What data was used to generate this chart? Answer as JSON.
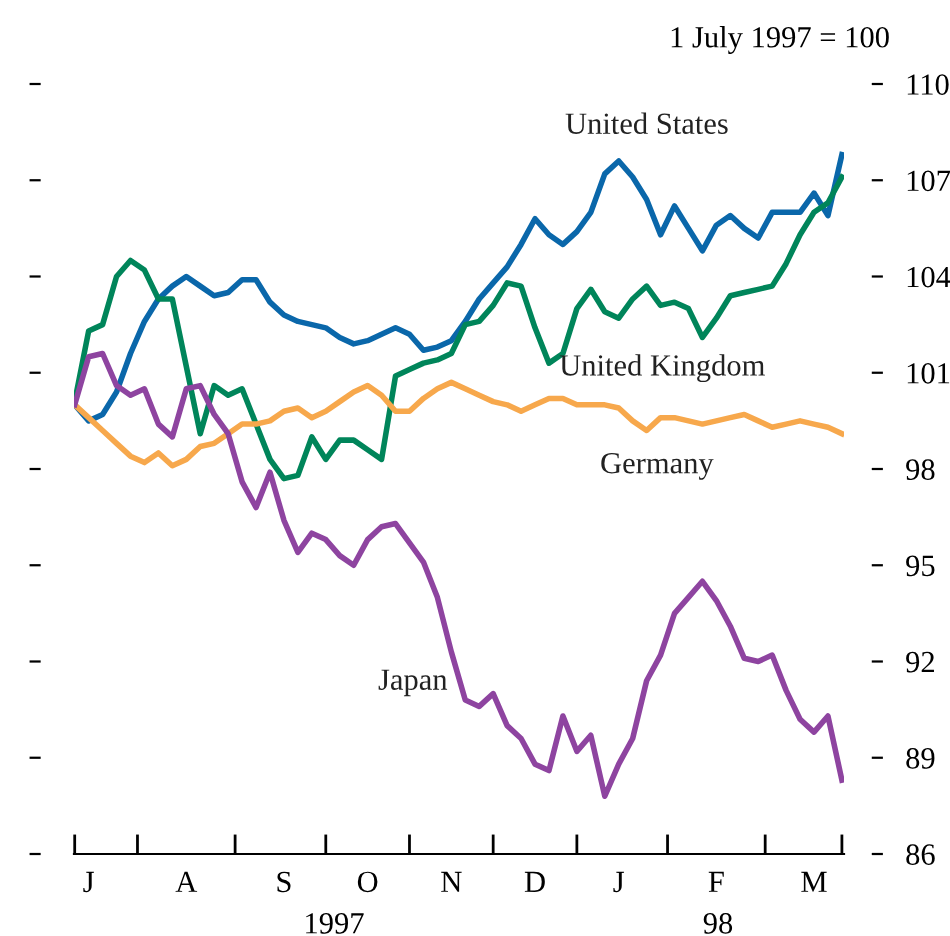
{
  "chart_data": {
    "type": "line",
    "annotations": [
      "1 July 1997 = 100",
      "1997",
      "98"
    ],
    "categories": [
      null,
      "J",
      null,
      null,
      null,
      null,
      null,
      null,
      "A",
      null,
      null,
      null,
      null,
      null,
      null,
      "S",
      null,
      null,
      null,
      null,
      null,
      "O",
      null,
      null,
      null,
      null,
      null,
      "N",
      null,
      null,
      null,
      null,
      null,
      "D",
      null,
      null,
      null,
      null,
      null,
      "J",
      null,
      null,
      null,
      null,
      null,
      null,
      "F",
      null,
      null,
      null,
      null,
      null,
      null,
      "M",
      null,
      null
    ],
    "series": [
      {
        "name": "United States",
        "color": "#0a67aa",
        "values": [
          100.0,
          99.5,
          99.7,
          100.4,
          101.6,
          102.6,
          103.3,
          103.7,
          104.0,
          103.7,
          103.4,
          103.5,
          103.9,
          103.9,
          103.2,
          102.8,
          102.6,
          102.5,
          102.4,
          102.1,
          101.9,
          102.0,
          102.2,
          102.4,
          102.2,
          101.7,
          101.8,
          102.0,
          102.6,
          103.3,
          103.8,
          104.3,
          105.0,
          105.8,
          105.3,
          105.0,
          105.4,
          106.0,
          107.2,
          107.6,
          107.1,
          106.4,
          105.3,
          106.2,
          105.5,
          104.8,
          105.6,
          105.9,
          105.5,
          105.2,
          106.0,
          106.0,
          106.0,
          106.6,
          105.9,
          107.8
        ]
      },
      {
        "name": "United Kingdom",
        "color": "#00855a",
        "values": [
          100.1,
          102.3,
          102.5,
          104.0,
          104.5,
          104.2,
          103.3,
          103.3,
          101.2,
          99.1,
          100.6,
          100.3,
          100.5,
          99.4,
          98.3,
          97.7,
          97.8,
          99.0,
          98.3,
          98.9,
          98.9,
          98.6,
          98.3,
          100.9,
          101.1,
          101.3,
          101.4,
          101.6,
          102.5,
          102.6,
          103.1,
          103.8,
          103.7,
          102.4,
          101.3,
          101.6,
          103.0,
          103.6,
          102.9,
          102.7,
          103.3,
          103.7,
          103.1,
          103.2,
          103.0,
          102.1,
          102.7,
          103.4,
          103.5,
          103.6,
          103.7,
          104.4,
          105.3,
          106.0,
          106.3,
          107.1
        ]
      },
      {
        "name": "Germany",
        "color": "#f7a84c",
        "values": [
          100.0,
          99.6,
          99.2,
          98.8,
          98.4,
          98.2,
          98.5,
          98.1,
          98.3,
          98.7,
          98.8,
          99.1,
          99.4,
          99.4,
          99.5,
          99.8,
          99.9,
          99.6,
          99.8,
          100.1,
          100.4,
          100.6,
          100.3,
          99.8,
          99.8,
          100.2,
          100.5,
          100.7,
          100.5,
          100.3,
          100.1,
          100.0,
          99.8,
          100.0,
          100.2,
          100.2,
          100.0,
          100.0,
          100.0,
          99.9,
          99.5,
          99.2,
          99.6,
          99.6,
          99.5,
          99.4,
          99.5,
          99.6,
          99.7,
          99.5,
          99.3,
          99.4,
          99.5,
          99.4,
          99.3,
          99.1
        ]
      },
      {
        "name": "Japan",
        "color": "#8e44a0",
        "values": [
          100.0,
          101.5,
          101.6,
          100.6,
          100.3,
          100.5,
          99.4,
          99.0,
          100.5,
          100.6,
          99.7,
          99.1,
          97.6,
          96.8,
          97.9,
          96.4,
          95.4,
          96.0,
          95.8,
          95.3,
          95.0,
          95.8,
          96.2,
          96.3,
          95.7,
          95.1,
          94.0,
          92.3,
          90.8,
          90.6,
          91.0,
          90.0,
          89.6,
          88.8,
          88.6,
          90.3,
          89.2,
          89.7,
          87.8,
          88.8,
          89.6,
          91.4,
          92.2,
          93.5,
          94.0,
          94.5,
          93.9,
          93.1,
          92.1,
          92.0,
          92.2,
          91.1,
          90.2,
          89.8,
          90.3,
          88.3
        ]
      }
    ],
    "ylim": [
      86,
      110
    ],
    "yticks": [
      86,
      89,
      92,
      95,
      98,
      101,
      104,
      107,
      110
    ],
    "grid": false,
    "legend": false
  }
}
